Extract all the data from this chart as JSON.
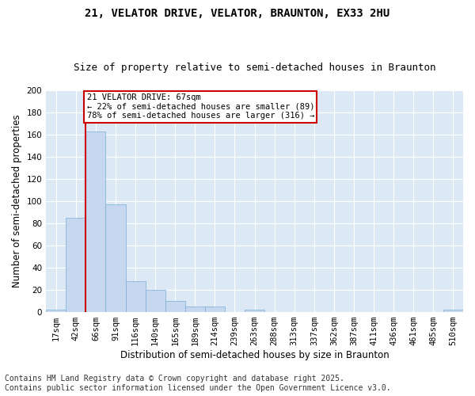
{
  "title1": "21, VELATOR DRIVE, VELATOR, BRAUNTON, EX33 2HU",
  "title2": "Size of property relative to semi-detached houses in Braunton",
  "xlabel": "Distribution of semi-detached houses by size in Braunton",
  "ylabel": "Number of semi-detached properties",
  "footer1": "Contains HM Land Registry data © Crown copyright and database right 2025.",
  "footer2": "Contains public sector information licensed under the Open Government Licence v3.0.",
  "annotation_title": "21 VELATOR DRIVE: 67sqm",
  "annotation_line1": "← 22% of semi-detached houses are smaller (89)",
  "annotation_line2": "78% of semi-detached houses are larger (316) →",
  "subject_bin_index": 2,
  "categories": [
    "17sqm",
    "42sqm",
    "66sqm",
    "91sqm",
    "116sqm",
    "140sqm",
    "165sqm",
    "189sqm",
    "214sqm",
    "239sqm",
    "263sqm",
    "288sqm",
    "313sqm",
    "337sqm",
    "362sqm",
    "387sqm",
    "411sqm",
    "436sqm",
    "461sqm",
    "485sqm",
    "510sqm"
  ],
  "bar_values": [
    2,
    85,
    163,
    97,
    28,
    20,
    10,
    5,
    5,
    0,
    2,
    0,
    0,
    0,
    0,
    0,
    0,
    0,
    0,
    0,
    2
  ],
  "bar_color": "#c5d8f0",
  "bar_edge_color": "#7aadd4",
  "red_line_color": "#cc0000",
  "annotation_box_color": "#cc0000",
  "figure_bg": "#ffffff",
  "plot_background": "#dce9f5",
  "ylim": [
    0,
    200
  ],
  "yticks": [
    0,
    20,
    40,
    60,
    80,
    100,
    120,
    140,
    160,
    180,
    200
  ],
  "grid_color": "#ffffff",
  "title_fontsize": 10,
  "subtitle_fontsize": 9,
  "axis_label_fontsize": 8.5,
  "tick_fontsize": 7.5,
  "annotation_fontsize": 7.5,
  "footer_fontsize": 7
}
